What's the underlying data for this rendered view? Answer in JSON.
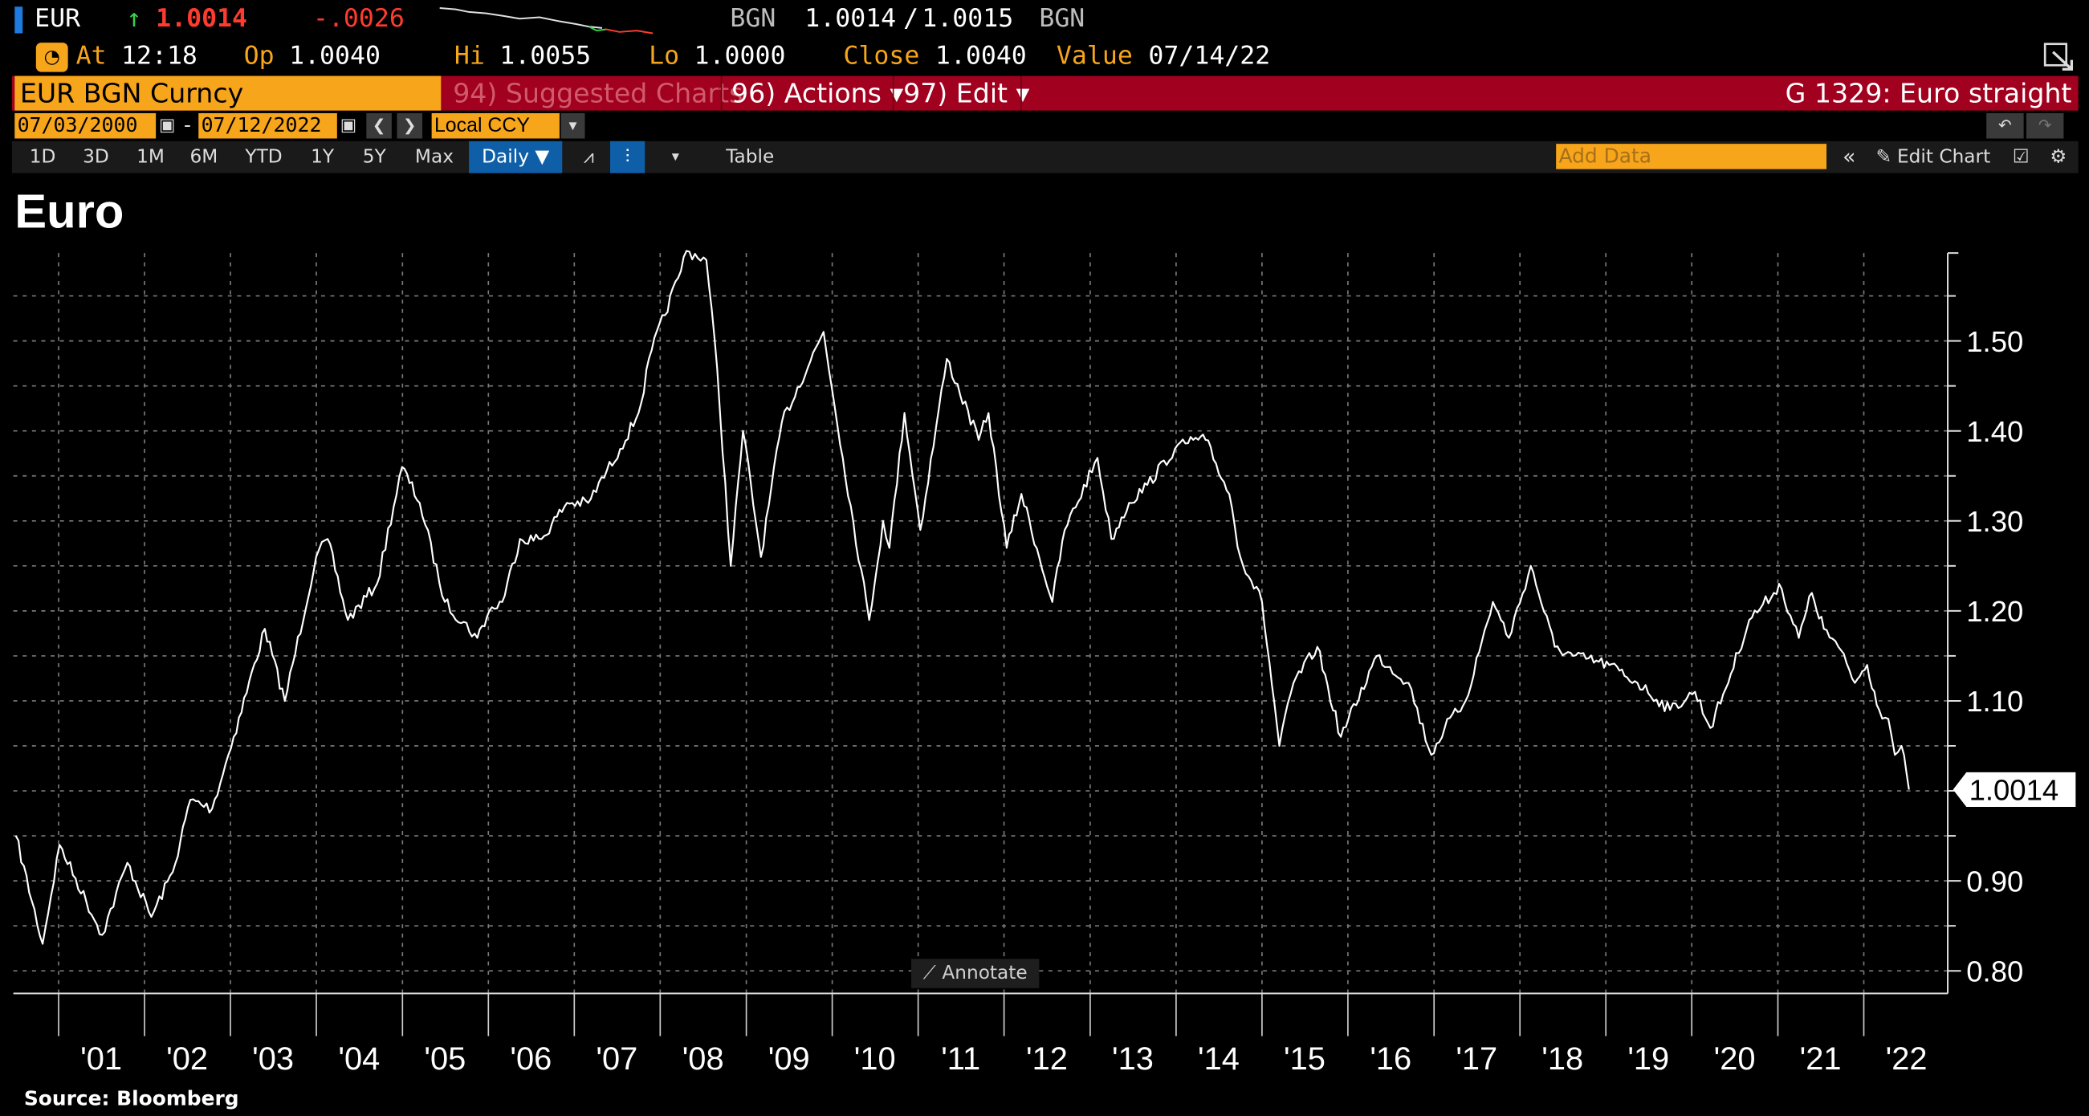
{
  "header": {
    "ticker": "EUR",
    "arrow": "↑",
    "last": "1.0014",
    "change": "-.0026",
    "source1": "BGN",
    "bid": "1.0014",
    "sep": "/",
    "ask": "1.0015",
    "source2": "BGN",
    "at_label": "At",
    "at_value": "12:18",
    "op_label": "Op",
    "op_value": "1.0040",
    "hi_label": "Hi",
    "hi_value": "1.0055",
    "lo_label": "Lo",
    "lo_value": "1.0000",
    "close_label": "Close",
    "close_value": "1.0040",
    "value_label": "Value",
    "value_date": "07/14/22"
  },
  "menu": {
    "security": "EUR BGN Curncy",
    "suggested": "94) Suggested Charts",
    "actions": "96) Actions ▾",
    "edit": "97) Edit ▾",
    "page_title": "G 1329: Euro straight"
  },
  "range": {
    "start": "07/03/2000",
    "dash": "-",
    "end": "07/12/2022",
    "currency": "Local CCY"
  },
  "toolbar": {
    "periods": [
      "1D",
      "3D",
      "1M",
      "6M",
      "YTD",
      "1Y",
      "5Y",
      "Max"
    ],
    "frequency": "Daily ▼",
    "table": "Table",
    "add_data_placeholder": "Add Data",
    "edit_chart": "Edit Chart"
  },
  "chart_title": "Euro",
  "annotate": "Annotate",
  "source": "Source: Bloomberg",
  "colors": {
    "orange": "#f7a51a",
    "menubar_red": "#a1001e",
    "up_green": "#35d04a",
    "down_red": "#ff3b30",
    "line": "#ffffff",
    "background": "#000000"
  },
  "chart_data": {
    "type": "line",
    "title": "Euro",
    "xlabel": "",
    "ylabel": "",
    "x_tick_labels": [
      "'01",
      "'02",
      "'03",
      "'04",
      "'05",
      "'06",
      "'07",
      "'08",
      "'09",
      "'10",
      "'11",
      "'12",
      "'13",
      "'14",
      "'15",
      "'16",
      "'17",
      "'18",
      "'19",
      "'20",
      "'21",
      "'22"
    ],
    "y_tick_labels": [
      "0.80",
      "0.90",
      "1.00",
      "1.10",
      "1.20",
      "1.30",
      "1.40",
      "1.50"
    ],
    "ylim": [
      0.78,
      1.58
    ],
    "y_axis_side": "right",
    "grid": true,
    "last_value_label": "1.0014",
    "series": [
      {
        "x": [
          "2000-07-03",
          "2000-10-25",
          "2001-01-05",
          "2001-07-05",
          "2001-10-20",
          "2002-01-30",
          "2002-05-01",
          "2002-07-15",
          "2002-10-15",
          "2003-01-15",
          "2003-05-27",
          "2003-08-20",
          "2003-12-31",
          "2004-02-18",
          "2004-05-14",
          "2004-09-15",
          "2004-12-30",
          "2005-03-15",
          "2005-06-30",
          "2005-11-15",
          "2006-01-05",
          "2006-03-01",
          "2006-05-15",
          "2006-08-15",
          "2006-12-01",
          "2007-03-01",
          "2007-07-15",
          "2007-10-01",
          "2007-11-26",
          "2008-03-17",
          "2008-04-22",
          "2008-07-15",
          "2008-08-30",
          "2008-10-27",
          "2008-12-18",
          "2009-03-04",
          "2009-06-01",
          "2009-11-25",
          "2010-02-15",
          "2010-06-07",
          "2010-08-05",
          "2010-09-01",
          "2010-11-04",
          "2011-01-10",
          "2011-05-03",
          "2011-09-15",
          "2011-10-27",
          "2012-01-12",
          "2012-03-15",
          "2012-07-24",
          "2012-09-15",
          "2013-02-01",
          "2013-04-01",
          "2013-06-15",
          "2013-09-01",
          "2013-12-27",
          "2014-03-15",
          "2014-05-06",
          "2014-08-15",
          "2014-10-01",
          "2015-01-01",
          "2015-03-16",
          "2015-05-15",
          "2015-08-24",
          "2015-12-02",
          "2016-05-03",
          "2016-09-15",
          "2016-12-20",
          "2017-02-15",
          "2017-05-15",
          "2017-09-08",
          "2017-11-15",
          "2018-02-16",
          "2018-05-29",
          "2018-08-15",
          "2019-01-15",
          "2019-05-15",
          "2019-10-01",
          "2020-01-15",
          "2020-03-20",
          "2020-06-15",
          "2020-09-01",
          "2020-12-15",
          "2021-01-06",
          "2021-03-31",
          "2021-05-25",
          "2021-07-15",
          "2021-09-15",
          "2021-11-24",
          "2022-01-15",
          "2022-03-07",
          "2022-04-15",
          "2022-05-13",
          "2022-06-10",
          "2022-07-12"
        ],
        "y": [
          0.95,
          0.83,
          0.94,
          0.84,
          0.92,
          0.86,
          0.91,
          0.99,
          0.98,
          1.06,
          1.18,
          1.1,
          1.26,
          1.28,
          1.19,
          1.23,
          1.36,
          1.32,
          1.21,
          1.17,
          1.2,
          1.21,
          1.28,
          1.28,
          1.32,
          1.32,
          1.38,
          1.42,
          1.49,
          1.57,
          1.6,
          1.59,
          1.47,
          1.25,
          1.4,
          1.26,
          1.41,
          1.51,
          1.37,
          1.19,
          1.3,
          1.27,
          1.42,
          1.29,
          1.48,
          1.39,
          1.42,
          1.27,
          1.33,
          1.21,
          1.29,
          1.37,
          1.28,
          1.32,
          1.34,
          1.38,
          1.39,
          1.39,
          1.33,
          1.26,
          1.21,
          1.05,
          1.12,
          1.16,
          1.06,
          1.15,
          1.12,
          1.04,
          1.07,
          1.1,
          1.21,
          1.17,
          1.25,
          1.16,
          1.15,
          1.14,
          1.12,
          1.09,
          1.11,
          1.07,
          1.13,
          1.19,
          1.22,
          1.23,
          1.17,
          1.22,
          1.18,
          1.16,
          1.12,
          1.14,
          1.09,
          1.08,
          1.04,
          1.05,
          1.0014
        ]
      }
    ]
  }
}
